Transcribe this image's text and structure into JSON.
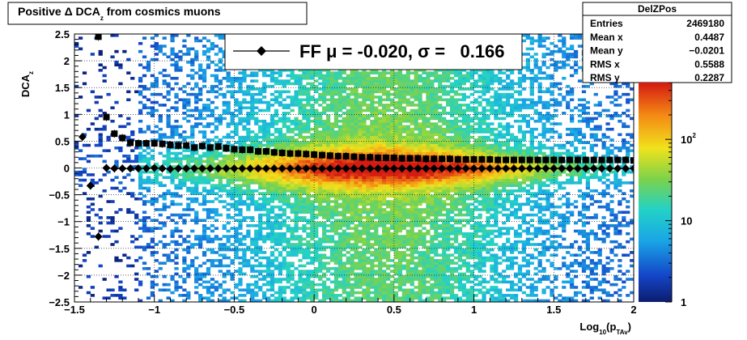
{
  "chart_data": {
    "type": "heatmap",
    "title": {
      "main": "Positive Δ DCA",
      "sub": "z",
      "rest": " from cosmics muons"
    },
    "xlabel": {
      "main": "Log",
      "sub1": "10",
      "mid": "(p",
      "sub2": "TAv",
      "end": ")"
    },
    "ylabel": {
      "main": "DCA",
      "sub": "z"
    },
    "xlim": [
      -1.5,
      2
    ],
    "ylim": [
      -2.5,
      2.5
    ],
    "x_ticks": [
      "−1.5",
      "−1",
      "−0.5",
      "0",
      "0.5",
      "1",
      "1.5",
      "2"
    ],
    "x_tick_values": [
      -1.5,
      -1,
      -0.5,
      0,
      0.5,
      1,
      1.5,
      2
    ],
    "y_ticks": [
      "−2.5",
      "−2",
      "−1.5",
      "−1",
      "−0.5",
      "0",
      "0.5",
      "1",
      "1.5",
      "2",
      "2.5"
    ],
    "y_tick_values": [
      -2.5,
      -2,
      -1.5,
      -1,
      -0.5,
      0,
      0.5,
      1,
      1.5,
      2,
      2.5
    ],
    "grid": true,
    "colorbar": {
      "scale": "log",
      "min": 1,
      "max": 500,
      "labels": [
        {
          "value": 1,
          "text": "1"
        },
        {
          "value": 10,
          "text": "10"
        },
        {
          "value": 100,
          "text": "10",
          "sup": "2"
        }
      ]
    },
    "stats_box": {
      "name": "DelZPos",
      "rows": [
        {
          "label": "Entries",
          "value": "2469180"
        },
        {
          "label": "Mean x",
          "value": "0.4487"
        },
        {
          "label": "Mean y",
          "value": "−0.0201"
        },
        {
          "label": "RMS x",
          "value": "0.5588"
        },
        {
          "label": "RMS y",
          "value": "0.2287"
        }
      ]
    },
    "legend": {
      "position": "top",
      "text": "FF μ = -0.020, σ =   0.166"
    },
    "series": [
      {
        "marker": "diamond",
        "x": [
          -1.45,
          -1.4,
          -1.35,
          -1.3,
          -1.25,
          -1.2,
          -1.15,
          -1.1,
          -1.05,
          -1.0,
          -0.95,
          -0.9,
          -0.85,
          -0.8,
          -0.75,
          -0.7,
          -0.65,
          -0.6,
          -0.55,
          -0.5,
          -0.45,
          -0.4,
          -0.35,
          -0.3,
          -0.25,
          -0.2,
          -0.15,
          -0.1,
          -0.05,
          0.0,
          0.05,
          0.1,
          0.15,
          0.2,
          0.25,
          0.3,
          0.35,
          0.4,
          0.45,
          0.5,
          0.55,
          0.6,
          0.65,
          0.7,
          0.75,
          0.8,
          0.85,
          0.9,
          0.95,
          1.0,
          1.05,
          1.1,
          1.15,
          1.2,
          1.25,
          1.3,
          1.35,
          1.4,
          1.45,
          1.5,
          1.55,
          1.6,
          1.65,
          1.7,
          1.75,
          1.8,
          1.85,
          1.9,
          1.95,
          2.0
        ],
        "y": [
          0.58,
          -0.33,
          -1.28,
          0.0,
          -0.01,
          -0.01,
          -0.01,
          -0.01,
          -0.01,
          0.0,
          -0.01,
          -0.02,
          -0.01,
          -0.01,
          -0.01,
          -0.01,
          -0.01,
          -0.01,
          -0.01,
          -0.01,
          -0.01,
          -0.01,
          -0.01,
          -0.01,
          -0.01,
          -0.01,
          -0.01,
          -0.01,
          -0.01,
          -0.01,
          -0.01,
          -0.01,
          -0.01,
          -0.01,
          -0.01,
          -0.01,
          -0.01,
          -0.01,
          -0.01,
          -0.01,
          -0.01,
          -0.01,
          -0.01,
          -0.01,
          -0.01,
          -0.01,
          -0.01,
          -0.01,
          -0.01,
          -0.01,
          -0.01,
          -0.01,
          -0.01,
          -0.01,
          -0.01,
          -0.01,
          -0.01,
          -0.01,
          -0.01,
          -0.01,
          -0.01,
          -0.01,
          -0.01,
          -0.01,
          -0.01,
          -0.01,
          -0.01,
          -0.01,
          -0.01,
          -0.01
        ]
      },
      {
        "marker": "square",
        "x": [
          -1.35,
          -1.3,
          -1.25,
          -1.2,
          -1.15,
          -1.1,
          -1.05,
          -1.0,
          -0.95,
          -0.9,
          -0.85,
          -0.8,
          -0.75,
          -0.7,
          -0.65,
          -0.6,
          -0.55,
          -0.5,
          -0.45,
          -0.4,
          -0.35,
          -0.3,
          -0.25,
          -0.2,
          -0.15,
          -0.1,
          -0.05,
          0.0,
          0.05,
          0.1,
          0.15,
          0.2,
          0.25,
          0.3,
          0.35,
          0.4,
          0.45,
          0.5,
          0.55,
          0.6,
          0.65,
          0.7,
          0.75,
          0.8,
          0.85,
          0.9,
          0.95,
          1.0,
          1.05,
          1.1,
          1.15,
          1.2,
          1.25,
          1.3,
          1.35,
          1.4,
          1.45,
          1.5,
          1.55,
          1.6,
          1.65,
          1.7,
          1.75,
          1.8,
          1.85,
          1.9,
          1.95,
          2.0
        ],
        "y": [
          2.45,
          0.95,
          0.64,
          0.56,
          0.47,
          0.46,
          0.46,
          0.46,
          0.45,
          0.43,
          0.42,
          0.42,
          0.38,
          0.41,
          0.38,
          0.4,
          0.37,
          0.35,
          0.34,
          0.34,
          0.31,
          0.31,
          0.29,
          0.28,
          0.27,
          0.27,
          0.26,
          0.25,
          0.24,
          0.23,
          0.22,
          0.22,
          0.21,
          0.2,
          0.2,
          0.19,
          0.19,
          0.19,
          0.18,
          0.18,
          0.18,
          0.17,
          0.17,
          0.17,
          0.17,
          0.16,
          0.16,
          0.16,
          0.16,
          0.16,
          0.15,
          0.15,
          0.15,
          0.15,
          0.15,
          0.15,
          0.15,
          0.15,
          0.15,
          0.15,
          0.15,
          0.15,
          0.15,
          0.15,
          0.15,
          0.15,
          0.15,
          0.14
        ]
      }
    ]
  }
}
